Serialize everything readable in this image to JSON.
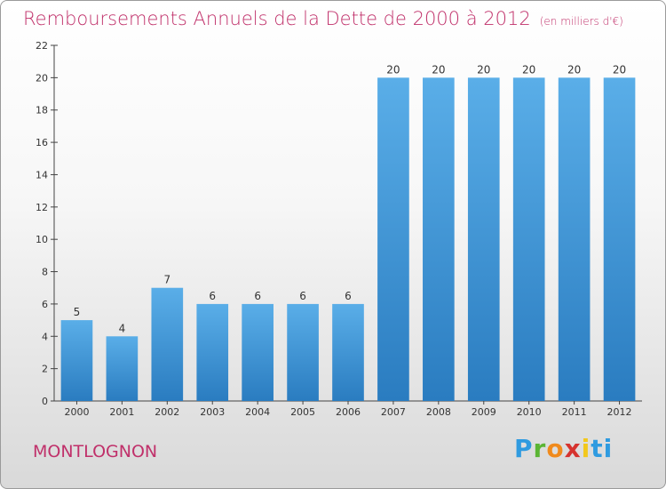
{
  "title": "Remboursements Annuels de la Dette de 2000 à 2012",
  "unit": "(en milliers d'€)",
  "place": "MONTLOGNON",
  "brand": [
    "P",
    "r",
    "o",
    "x",
    "i",
    "ti"
  ],
  "colors": {
    "bar_top": "#5aaee8",
    "bar_bottom": "#2a7cc0",
    "accent": "#c0306a"
  },
  "chart_data": {
    "type": "bar",
    "title": "Remboursements Annuels de la Dette de 2000 à 2012",
    "categories": [
      "2000",
      "2001",
      "2002",
      "2003",
      "2004",
      "2005",
      "2006",
      "2007",
      "2008",
      "2009",
      "2010",
      "2011",
      "2012"
    ],
    "values": [
      5,
      4,
      7,
      6,
      6,
      6,
      6,
      20,
      20,
      20,
      20,
      20,
      20
    ],
    "ylim": [
      0,
      22
    ],
    "yticks": [
      0,
      2,
      4,
      6,
      8,
      10,
      12,
      14,
      16,
      18,
      20,
      22
    ],
    "grid": false,
    "legend": "none"
  }
}
